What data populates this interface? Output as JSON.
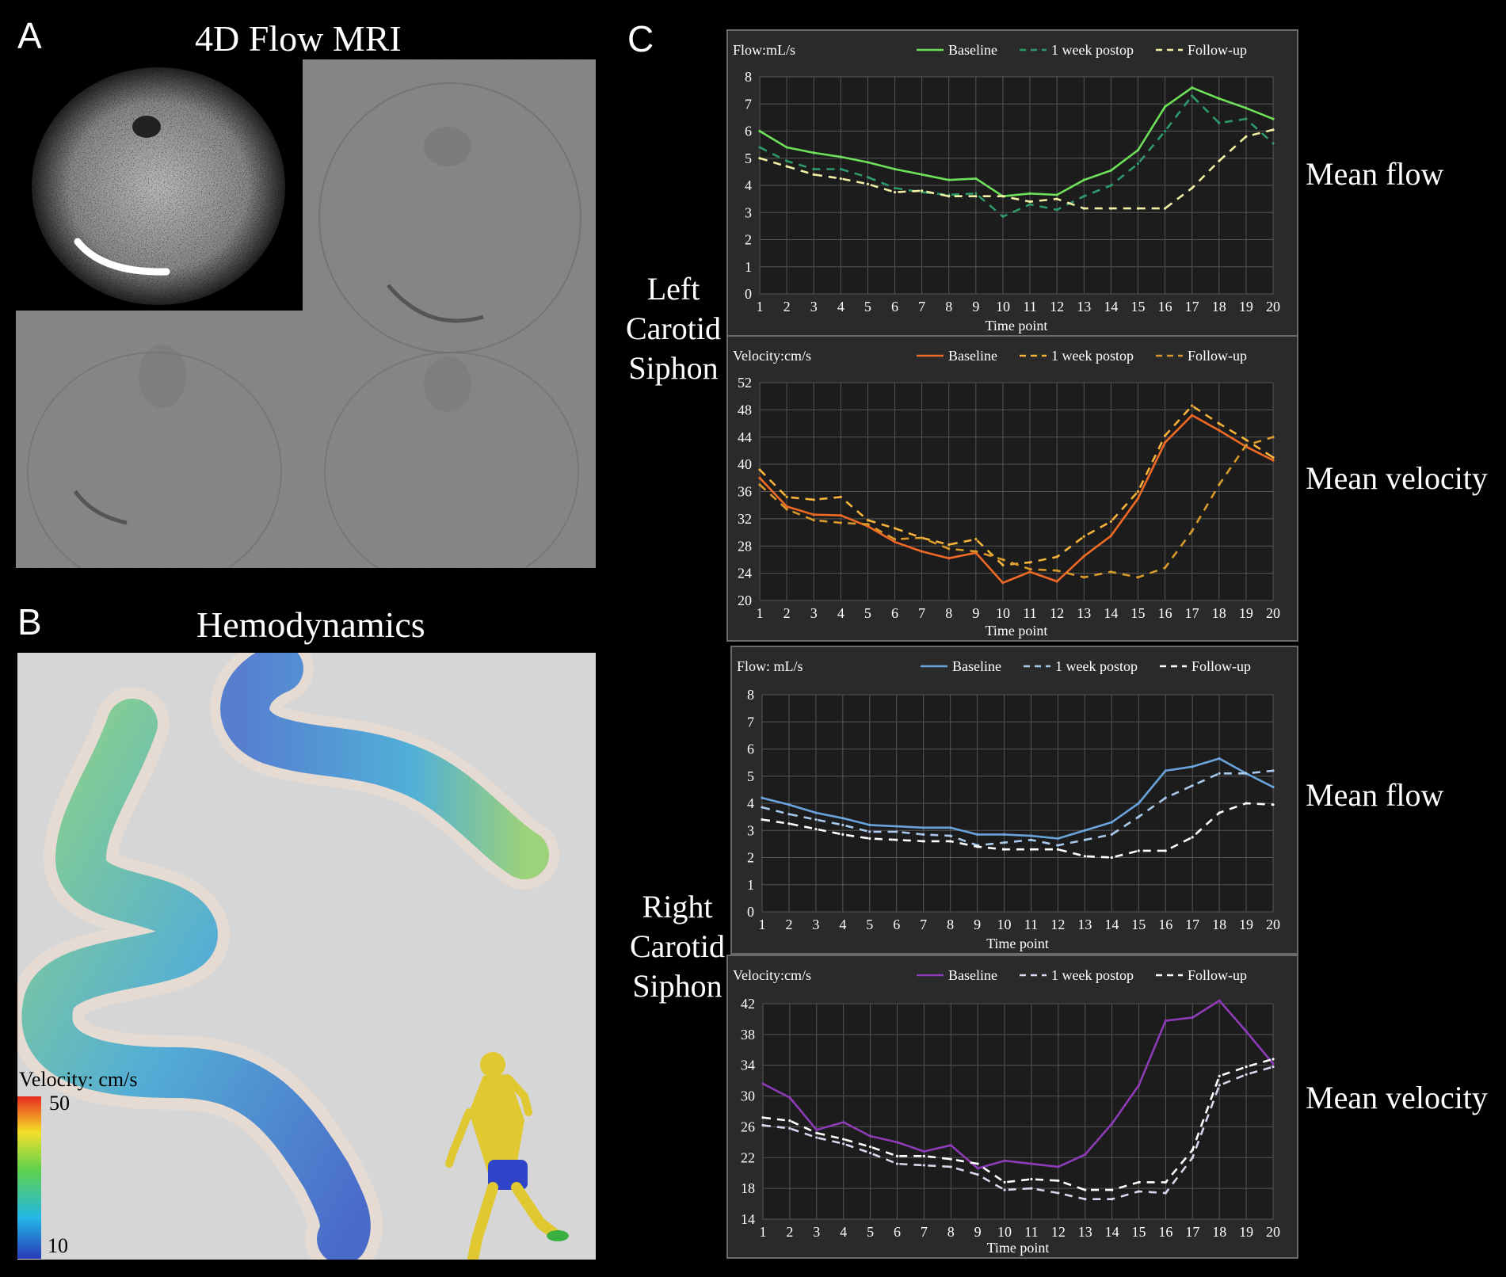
{
  "panels": {
    "a": {
      "letter": "A",
      "title": "4D Flow MRI"
    },
    "b": {
      "letter": "B",
      "title": "Hemodynamics",
      "colorbar": {
        "title": "Velocity: cm/s",
        "max": "50",
        "min": "10"
      }
    },
    "c": {
      "letter": "C"
    }
  },
  "side_labels": {
    "left": [
      "Left",
      "Carotid",
      "Siphon"
    ],
    "right": [
      "Right",
      "Carotid",
      "Siphon"
    ]
  },
  "metric_labels": [
    "Mean flow",
    "Mean velocity",
    "Mean flow",
    "Mean velocity"
  ],
  "chart_data": [
    {
      "type": "line",
      "title": "Flow:mL/s",
      "xlabel": "Time point",
      "x": [
        1,
        2,
        3,
        4,
        5,
        6,
        7,
        8,
        9,
        10,
        11,
        12,
        13,
        14,
        15,
        16,
        17,
        18,
        19,
        20
      ],
      "ylim": [
        0,
        8
      ],
      "yticks": [
        0,
        1,
        2,
        3,
        4,
        5,
        6,
        7,
        8
      ],
      "grid": true,
      "legend": "top",
      "series": [
        {
          "name": "Baseline",
          "color": "#6ee05a",
          "dash": "",
          "values": [
            6.0,
            5.4,
            5.2,
            5.05,
            4.85,
            4.6,
            4.4,
            4.2,
            4.25,
            3.6,
            3.7,
            3.65,
            4.2,
            4.55,
            5.3,
            6.9,
            7.6,
            7.2,
            6.85,
            6.45
          ]
        },
        {
          "name": "1 week postop",
          "color": "#2e9a6a",
          "dash": "10,8",
          "values": [
            5.4,
            4.9,
            4.6,
            4.6,
            4.3,
            3.9,
            3.75,
            3.65,
            3.7,
            2.85,
            3.3,
            3.1,
            3.6,
            4.0,
            4.8,
            6.0,
            7.3,
            6.3,
            6.45,
            5.55
          ]
        },
        {
          "name": "Follow-up",
          "color": "#f2f0a4",
          "dash": "10,8",
          "values": [
            5.0,
            4.7,
            4.4,
            4.25,
            4.05,
            3.75,
            3.8,
            3.6,
            3.6,
            3.6,
            3.4,
            3.5,
            3.15,
            3.15,
            3.15,
            3.15,
            3.9,
            4.9,
            5.8,
            6.05
          ]
        }
      ]
    },
    {
      "type": "line",
      "title": "Velocity:cm/s",
      "xlabel": "Time point",
      "x": [
        1,
        2,
        3,
        4,
        5,
        6,
        7,
        8,
        9,
        10,
        11,
        12,
        13,
        14,
        15,
        16,
        17,
        18,
        19,
        20
      ],
      "ylim": [
        20,
        52
      ],
      "yticks": [
        20,
        24,
        28,
        32,
        36,
        40,
        44,
        48,
        52
      ],
      "grid": true,
      "legend": "top",
      "series": [
        {
          "name": "Baseline",
          "color": "#f06a26",
          "dash": "",
          "values": [
            38,
            33.8,
            32.6,
            32.5,
            30.9,
            28.6,
            27.2,
            26.2,
            27,
            22.6,
            24.2,
            22.8,
            26.5,
            29.5,
            35,
            43.2,
            47.2,
            45,
            42.6,
            40.6
          ]
        },
        {
          "name": "1 week postop",
          "color": "#f7b33a",
          "dash": "10,8",
          "values": [
            39.2,
            35.2,
            34.8,
            35.2,
            31.8,
            30.6,
            29.2,
            28.2,
            29,
            25.2,
            25.6,
            26.4,
            29.4,
            31.6,
            36,
            44.2,
            48.6,
            46,
            43.6,
            41
          ]
        },
        {
          "name": "Follow-up",
          "color": "#d99a2a",
          "dash": "10,8",
          "values": [
            37,
            33.4,
            31.8,
            31.4,
            31.2,
            29,
            29.2,
            27.6,
            27.2,
            26,
            24.6,
            24.4,
            23.4,
            24.2,
            23.4,
            24.8,
            30.2,
            37,
            42.8,
            44
          ]
        }
      ]
    },
    {
      "type": "line",
      "title": "Flow: mL/s",
      "xlabel": "Time point",
      "x": [
        1,
        2,
        3,
        4,
        5,
        6,
        7,
        8,
        9,
        10,
        11,
        12,
        13,
        14,
        15,
        16,
        17,
        18,
        19,
        20
      ],
      "ylim": [
        0,
        8
      ],
      "yticks": [
        0,
        1,
        2,
        3,
        4,
        5,
        6,
        7,
        8
      ],
      "grid": true,
      "legend": "top",
      "series": [
        {
          "name": "Baseline",
          "color": "#6aa4dc",
          "dash": "",
          "values": [
            4.2,
            3.95,
            3.65,
            3.45,
            3.2,
            3.15,
            3.1,
            3.1,
            2.85,
            2.85,
            2.8,
            2.7,
            3.0,
            3.3,
            4.0,
            5.2,
            5.35,
            5.65,
            5.1,
            4.6
          ]
        },
        {
          "name": "1 week postop",
          "color": "#a8c8ec",
          "dash": "10,8",
          "values": [
            3.85,
            3.6,
            3.4,
            3.2,
            2.95,
            2.95,
            2.85,
            2.8,
            2.45,
            2.55,
            2.65,
            2.45,
            2.65,
            2.85,
            3.5,
            4.2,
            4.65,
            5.1,
            5.1,
            5.2
          ]
        },
        {
          "name": "Follow-up",
          "color": "#ffffff",
          "dash": "10,8",
          "values": [
            3.4,
            3.25,
            3.05,
            2.85,
            2.7,
            2.65,
            2.6,
            2.6,
            2.4,
            2.3,
            2.3,
            2.3,
            2.05,
            2.0,
            2.25,
            2.25,
            2.75,
            3.65,
            4.0,
            3.95
          ]
        }
      ]
    },
    {
      "type": "line",
      "title": "Velocity:cm/s",
      "xlabel": "Time point",
      "x": [
        1,
        2,
        3,
        4,
        5,
        6,
        7,
        8,
        9,
        10,
        11,
        12,
        13,
        14,
        15,
        16,
        17,
        18,
        19,
        20
      ],
      "ylim": [
        14,
        42
      ],
      "yticks": [
        14,
        18,
        22,
        26,
        30,
        34,
        38,
        42
      ],
      "grid": true,
      "legend": "top",
      "series": [
        {
          "name": "Baseline",
          "color": "#8e3bb8",
          "dash": "",
          "values": [
            31.6,
            29.8,
            25.6,
            26.6,
            24.8,
            24,
            22.8,
            23.6,
            20.6,
            21.6,
            21.2,
            20.8,
            22.4,
            26.4,
            31.4,
            39.8,
            40.2,
            42.4,
            38.4,
            34.2
          ]
        },
        {
          "name": "1 week postop",
          "color": "#d8d8f0",
          "dash": "10,8",
          "values": [
            26.2,
            25.8,
            24.6,
            23.8,
            22.6,
            21.2,
            21,
            20.8,
            19.8,
            17.8,
            18,
            17.4,
            16.6,
            16.6,
            17.6,
            17.4,
            22,
            31.4,
            32.8,
            33.8
          ]
        },
        {
          "name": "Follow-up",
          "color": "#ffffff",
          "dash": "10,8",
          "values": [
            27.2,
            26.8,
            25.2,
            24.4,
            23.4,
            22.2,
            22.2,
            21.8,
            21.2,
            18.8,
            19.2,
            19,
            17.8,
            17.8,
            18.8,
            18.8,
            23,
            32.6,
            33.8,
            34.8
          ]
        }
      ]
    }
  ]
}
